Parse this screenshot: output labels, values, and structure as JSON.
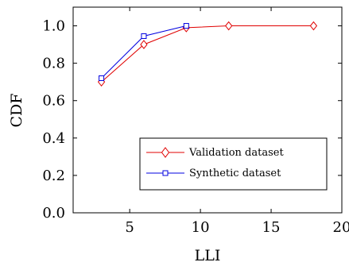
{
  "chart_data": {
    "type": "line",
    "xlabel": "LLI",
    "ylabel": "CDF",
    "xlim": [
      1,
      20
    ],
    "ylim": [
      0,
      1.1
    ],
    "xticks": [
      "5",
      "10",
      "15",
      "20"
    ],
    "yticks": [
      "0.0",
      "0.2",
      "0.4",
      "0.6",
      "0.8",
      "1.0"
    ],
    "grid": false,
    "legend_position": "bottom-right",
    "series": [
      {
        "name": "Validation dataset",
        "color": "#e00000",
        "marker": "diamond",
        "x": [
          3,
          6,
          9,
          12,
          18
        ],
        "y": [
          0.7,
          0.9,
          0.99,
          1.0,
          1.0
        ]
      },
      {
        "name": "Synthetic dataset",
        "color": "#0000e0",
        "marker": "square",
        "x": [
          3,
          6,
          9
        ],
        "y": [
          0.72,
          0.945,
          1.0
        ]
      }
    ]
  }
}
